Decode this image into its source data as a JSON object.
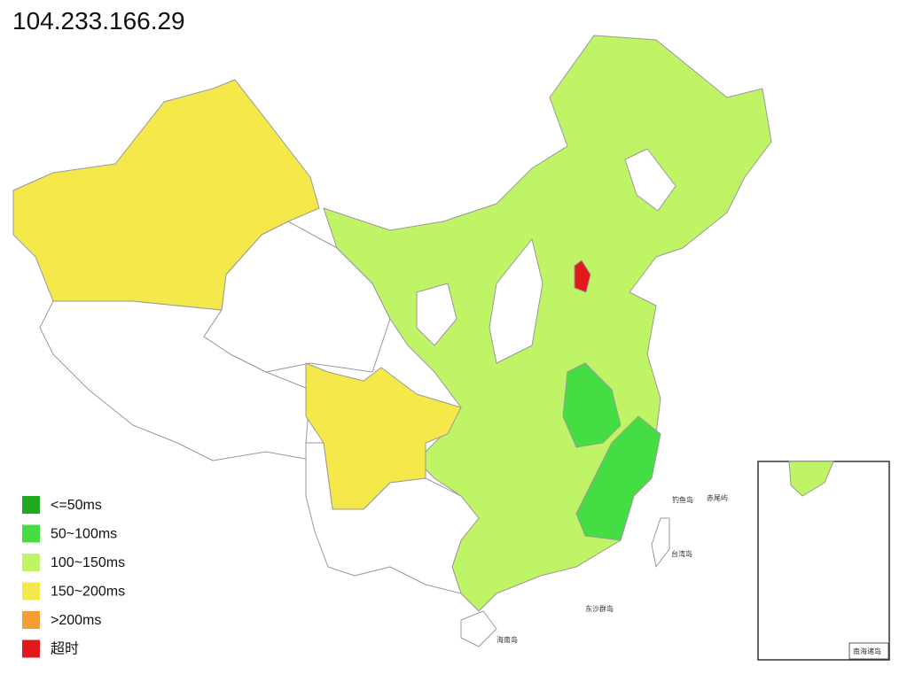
{
  "header": {
    "title": "104.233.166.29"
  },
  "legend": [
    {
      "label": "<=50ms",
      "color": "#1faa1f"
    },
    {
      "label": "50~100ms",
      "color": "#44dd44"
    },
    {
      "label": "100~150ms",
      "color": "#bff466"
    },
    {
      "label": "150~200ms",
      "color": "#f5e84a"
    },
    {
      "label": ">200ms",
      "color": "#f59c34"
    },
    {
      "label": "超时",
      "color": "#e3181b"
    }
  ],
  "map_labels": [
    "钓鱼岛",
    "赤尾屿",
    "台湾岛",
    "东沙群岛",
    "海南岛",
    "南海诸岛"
  ]
}
